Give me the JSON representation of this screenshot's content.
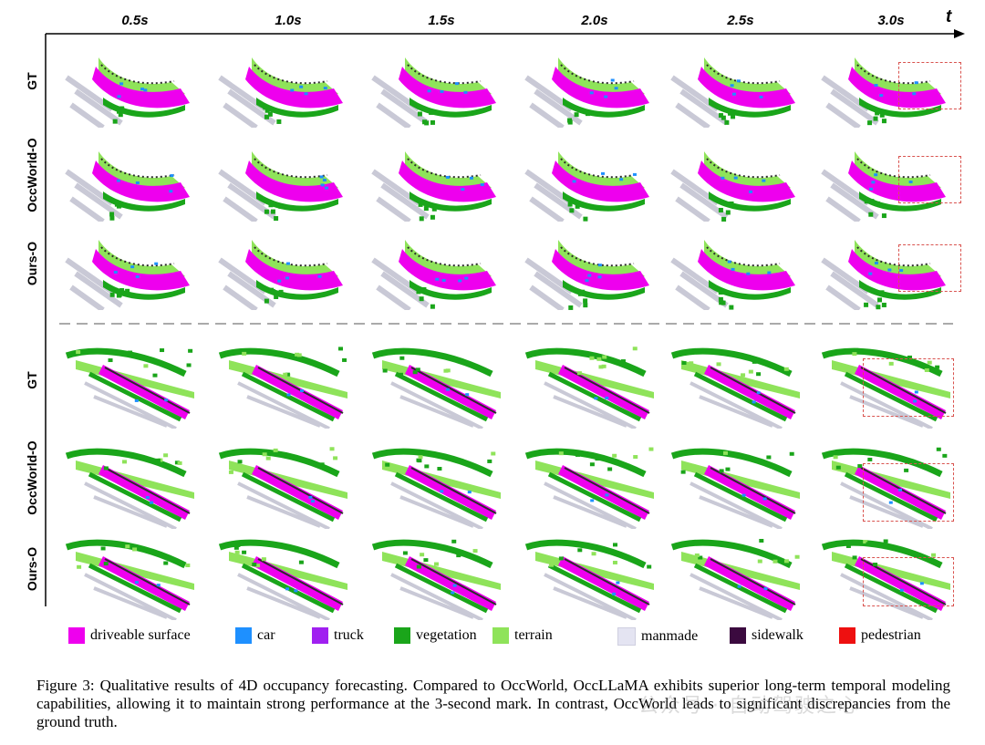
{
  "figure": {
    "time_axis_symbol": "t",
    "time_labels": [
      "0.5s",
      "1.0s",
      "1.5s",
      "2.0s",
      "2.5s",
      "3.0s"
    ],
    "groups": [
      {
        "rows": [
          "GT",
          "OccWorld-O",
          "Ours-O"
        ],
        "scene": "curve"
      },
      {
        "rows": [
          "GT",
          "OccWorld-O",
          "Ours-O"
        ],
        "scene": "straight"
      }
    ]
  },
  "legend": [
    {
      "label": "driveable surface",
      "color": "#ee00ee"
    },
    {
      "label": "car",
      "color": "#1e90ff"
    },
    {
      "label": "truck",
      "color": "#a020f0"
    },
    {
      "label": "vegetation",
      "color": "#1aa51a"
    },
    {
      "label": "terrain",
      "color": "#8fe35a"
    },
    {
      "label": "manmade",
      "color": "#e4e4f2"
    },
    {
      "label": "sidewalk",
      "color": "#3b0a3f"
    },
    {
      "label": "pedestrian",
      "color": "#ee1010"
    }
  ],
  "caption": "Figure 3: Qualitative results of 4D occupancy forecasting. Compared to OccWorld, OccLLaMA exhibits superior long-term temporal modeling capabilities, allowing it to maintain strong performance at the 3-second mark. In contrast, OccWorld leads to significant discrepancies from the ground truth.",
  "watermark": "公众号 · 自动驾驶之心"
}
